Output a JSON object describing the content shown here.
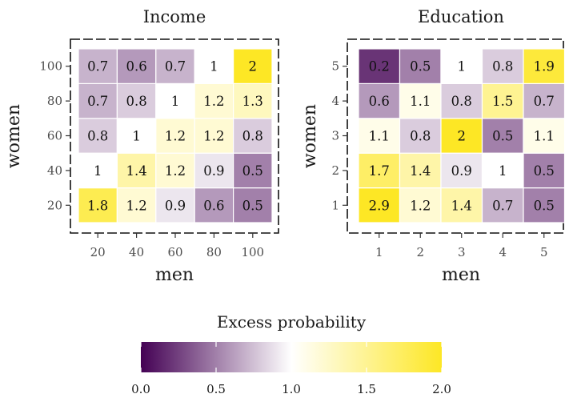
{
  "chart_data": [
    {
      "type": "heatmap",
      "title": "Income",
      "xlabel": "men",
      "ylabel": "women",
      "x_categories": [
        "20",
        "40",
        "60",
        "80",
        "100"
      ],
      "y_categories": [
        "20",
        "40",
        "60",
        "80",
        "100"
      ],
      "values": [
        [
          1.8,
          1.2,
          0.9,
          0.6,
          0.5
        ],
        [
          1,
          1.4,
          1.2,
          0.9,
          0.5
        ],
        [
          0.8,
          1,
          1.2,
          1.2,
          0.8
        ],
        [
          0.7,
          0.8,
          1,
          1.2,
          1.3
        ],
        [
          0.7,
          0.6,
          0.7,
          1,
          2
        ]
      ]
    },
    {
      "type": "heatmap",
      "title": "Education",
      "xlabel": "men",
      "ylabel": "women",
      "x_categories": [
        "1",
        "2",
        "3",
        "4",
        "5"
      ],
      "y_categories": [
        "1",
        "2",
        "3",
        "4",
        "5"
      ],
      "values": [
        [
          2.9,
          1.2,
          1.4,
          0.7,
          0.5
        ],
        [
          1.7,
          1.4,
          0.9,
          1,
          0.5
        ],
        [
          1.1,
          0.8,
          2,
          0.5,
          1.1
        ],
        [
          0.6,
          1.1,
          0.8,
          1.5,
          0.7
        ],
        [
          0.2,
          0.5,
          1,
          0.8,
          1.9
        ]
      ]
    }
  ],
  "legend": {
    "title": "Excess probability",
    "range": [
      0,
      2
    ],
    "ticks": [
      0.0,
      0.5,
      1.0,
      1.5,
      2.0
    ],
    "tick_labels": [
      "0.0",
      "0.5",
      "1.0",
      "1.5",
      "2.0"
    ],
    "colors": {
      "low": "#440154",
      "mid": "#ffffff",
      "high": "#fde725"
    }
  }
}
